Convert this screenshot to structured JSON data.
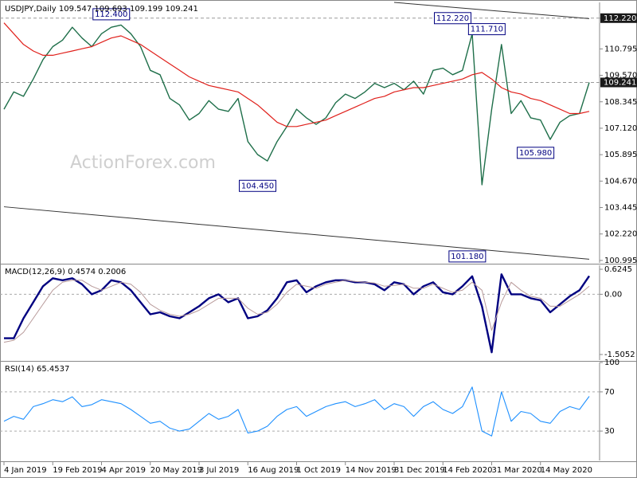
{
  "chart_data": [
    {
      "type": "line",
      "title": "USDJPY,Daily  109.547 109.693 109.199 109.241",
      "watermark": "ActionForex.com",
      "series": [
        {
          "name": "Close",
          "color": "#1f6f4a",
          "width": 1.4,
          "values": [
            108.0,
            108.8,
            108.6,
            109.4,
            110.3,
            110.9,
            111.2,
            111.8,
            111.3,
            110.9,
            111.5,
            111.8,
            111.9,
            111.5,
            110.9,
            109.8,
            109.6,
            108.5,
            108.2,
            107.5,
            107.8,
            108.4,
            108.0,
            107.9,
            108.5,
            106.5,
            105.9,
            105.6,
            106.5,
            107.2,
            108.0,
            107.6,
            107.3,
            107.6,
            108.3,
            108.7,
            108.5,
            108.8,
            109.2,
            109.0,
            109.2,
            108.9,
            109.3,
            108.7,
            109.8,
            109.9,
            109.6,
            109.8,
            111.5,
            104.5,
            108.0,
            111.0,
            107.8,
            108.4,
            107.6,
            107.5,
            106.6,
            107.4,
            107.7,
            107.8,
            109.241
          ]
        },
        {
          "name": "MA",
          "color": "#e0201b",
          "width": 1.2,
          "values": [
            112.0,
            111.5,
            111.0,
            110.7,
            110.5,
            110.5,
            110.6,
            110.7,
            110.8,
            110.9,
            111.1,
            111.3,
            111.4,
            111.2,
            111.0,
            110.7,
            110.4,
            110.1,
            109.8,
            109.5,
            109.3,
            109.1,
            109.0,
            108.9,
            108.8,
            108.5,
            108.2,
            107.8,
            107.4,
            107.2,
            107.2,
            107.3,
            107.4,
            107.5,
            107.7,
            107.9,
            108.1,
            108.3,
            108.5,
            108.6,
            108.8,
            108.9,
            109.0,
            109.0,
            109.1,
            109.2,
            109.3,
            109.4,
            109.6,
            109.7,
            109.4,
            109.0,
            108.8,
            108.7,
            108.5,
            108.4,
            108.2,
            108.0,
            107.8,
            107.8,
            107.9
          ]
        }
      ],
      "ylim": [
        100.88,
        112.95
      ],
      "yticks": [
        {
          "value": 112.22,
          "label": "112.220"
        },
        110.795,
        {
          "value": 109.57,
          "label": "109.570"
        },
        108.345,
        {
          "value": 107.12,
          "label": "107.120"
        },
        105.895,
        {
          "value": 104.67,
          "label": "104.670"
        },
        103.445,
        {
          "value": 102.22,
          "label": "102.220"
        },
        100.995
      ],
      "price_lines": [
        {
          "value": 112.22,
          "label": "112.220"
        },
        {
          "value": 109.241,
          "label": "109.241"
        }
      ],
      "trendlines": [
        {
          "x": [
            40,
            60
          ],
          "values": [
            112.95,
            112.2
          ]
        },
        {
          "x": [
            0,
            60
          ],
          "values": [
            103.48,
            101.05
          ]
        }
      ],
      "annotations": [
        {
          "x": 11,
          "value": 112.4,
          "label": "112.400"
        },
        {
          "x": 26,
          "value": 104.45,
          "label": "104.450"
        },
        {
          "x": 46,
          "value": 112.22,
          "label": "112.220"
        },
        {
          "x": 49.5,
          "value": 111.71,
          "label": "111.710"
        },
        {
          "x": 47.5,
          "value": 101.18,
          "label": "101.180"
        },
        {
          "x": 54.5,
          "value": 105.98,
          "label": "105.980"
        }
      ]
    },
    {
      "type": "line",
      "title": "MACD(12,26,9) 0.4574 0.2006",
      "series": [
        {
          "name": "MACD",
          "color": "#000080",
          "width": 2.4,
          "values": [
            -1.1,
            -1.1,
            -0.6,
            -0.2,
            0.2,
            0.4,
            0.35,
            0.4,
            0.25,
            0.0,
            0.1,
            0.35,
            0.3,
            0.1,
            -0.2,
            -0.5,
            -0.45,
            -0.55,
            -0.6,
            -0.45,
            -0.3,
            -0.1,
            0.0,
            -0.2,
            -0.1,
            -0.6,
            -0.55,
            -0.4,
            -0.1,
            0.3,
            0.35,
            0.05,
            0.2,
            0.3,
            0.35,
            0.35,
            0.3,
            0.3,
            0.25,
            0.1,
            0.3,
            0.25,
            0.0,
            0.2,
            0.3,
            0.05,
            0.0,
            0.2,
            0.45,
            -0.3,
            -1.45,
            0.5,
            0.0,
            0.0,
            -0.1,
            -0.15,
            -0.45,
            -0.25,
            -0.05,
            0.1,
            0.4574
          ]
        },
        {
          "name": "Signal",
          "color": "#b89a9a",
          "width": 1,
          "values": [
            -1.2,
            -1.15,
            -0.95,
            -0.6,
            -0.25,
            0.1,
            0.3,
            0.35,
            0.35,
            0.2,
            0.1,
            0.2,
            0.3,
            0.25,
            0.05,
            -0.25,
            -0.4,
            -0.5,
            -0.55,
            -0.5,
            -0.4,
            -0.25,
            -0.1,
            -0.1,
            -0.1,
            -0.35,
            -0.5,
            -0.45,
            -0.25,
            0.05,
            0.25,
            0.2,
            0.15,
            0.25,
            0.3,
            0.35,
            0.32,
            0.3,
            0.28,
            0.2,
            0.22,
            0.25,
            0.15,
            0.15,
            0.25,
            0.15,
            0.05,
            0.1,
            0.3,
            0.1,
            -0.9,
            -0.2,
            0.3,
            0.1,
            -0.05,
            -0.1,
            -0.3,
            -0.3,
            -0.15,
            0.0,
            0.2006
          ]
        }
      ],
      "ylim": [
        -1.645,
        0.724
      ],
      "yticks": [
        0.6245,
        {
          "value": 0,
          "label": "0.00"
        },
        -1.5052
      ],
      "levels": [
        0
      ]
    },
    {
      "type": "line",
      "title": "RSI(14) 65.4537",
      "categories": [
        "4 Jan 2019",
        null,
        null,
        null,
        null,
        "19 Feb 2019",
        null,
        null,
        null,
        null,
        "4 Apr 2019",
        null,
        null,
        null,
        null,
        "20 May 2019",
        null,
        null,
        null,
        null,
        "3 Jul 2019",
        null,
        null,
        null,
        null,
        "16 Aug 2019",
        null,
        null,
        null,
        null,
        "1 Oct 2019",
        null,
        null,
        null,
        null,
        "14 Nov 2019",
        null,
        null,
        null,
        null,
        "31 Dec 2019",
        null,
        null,
        null,
        null,
        "14 Feb 2020",
        null,
        null,
        null,
        null,
        "31 Mar 2020",
        null,
        null,
        null,
        null,
        "14 May 2020",
        null,
        null,
        null,
        null,
        null
      ],
      "series": [
        {
          "name": "RSI",
          "color": "#1e90ff",
          "width": 1.1,
          "values": [
            40,
            45,
            42,
            55,
            58,
            62,
            60,
            65,
            55,
            57,
            62,
            60,
            58,
            52,
            45,
            38,
            40,
            33,
            30,
            32,
            40,
            48,
            42,
            45,
            52,
            28,
            30,
            35,
            45,
            52,
            55,
            45,
            50,
            55,
            58,
            60,
            55,
            58,
            62,
            52,
            58,
            55,
            45,
            55,
            60,
            52,
            48,
            55,
            75,
            30,
            25,
            70,
            40,
            50,
            48,
            40,
            38,
            50,
            55,
            52,
            65.4537
          ]
        }
      ],
      "ylim": [
        0,
        100
      ],
      "yticks": [
        100,
        70,
        30
      ],
      "levels": [
        70,
        30
      ]
    }
  ]
}
